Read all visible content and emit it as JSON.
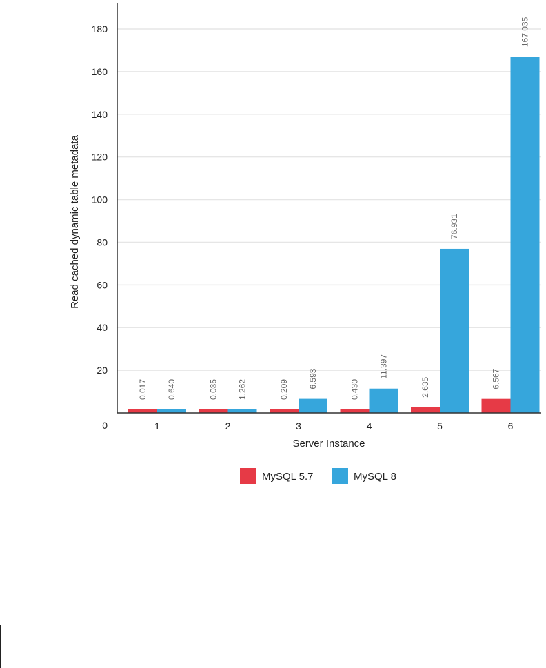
{
  "chart_data": {
    "type": "bar",
    "title": "",
    "xlabel": "Server Instance",
    "ylabel": "Read cached dynamic table metadata",
    "categories": [
      "1",
      "2",
      "3",
      "4",
      "5",
      "6"
    ],
    "ylim": [
      0,
      190
    ],
    "y_ticks": [
      "0",
      "20",
      "40",
      "60",
      "80",
      "100",
      "120",
      "140",
      "160",
      "180"
    ],
    "grid": "horizontal",
    "legend_position": "bottom",
    "series": [
      {
        "name": "MySQL 5.7",
        "color": "#e63a46",
        "values": [
          0.017,
          0.035,
          0.209,
          0.43,
          2.635,
          6.567
        ],
        "labels": [
          "0.017",
          "0.035",
          "0.209",
          "0.430",
          "2.635",
          "6.567"
        ]
      },
      {
        "name": "MySQL 8",
        "color": "#36a6dc",
        "values": [
          0.64,
          1.262,
          6.593,
          11.397,
          76.931,
          167.035
        ],
        "labels": [
          "0.640",
          "1.262",
          "6.593",
          "11.397",
          "76.931",
          "167.035"
        ]
      }
    ]
  }
}
